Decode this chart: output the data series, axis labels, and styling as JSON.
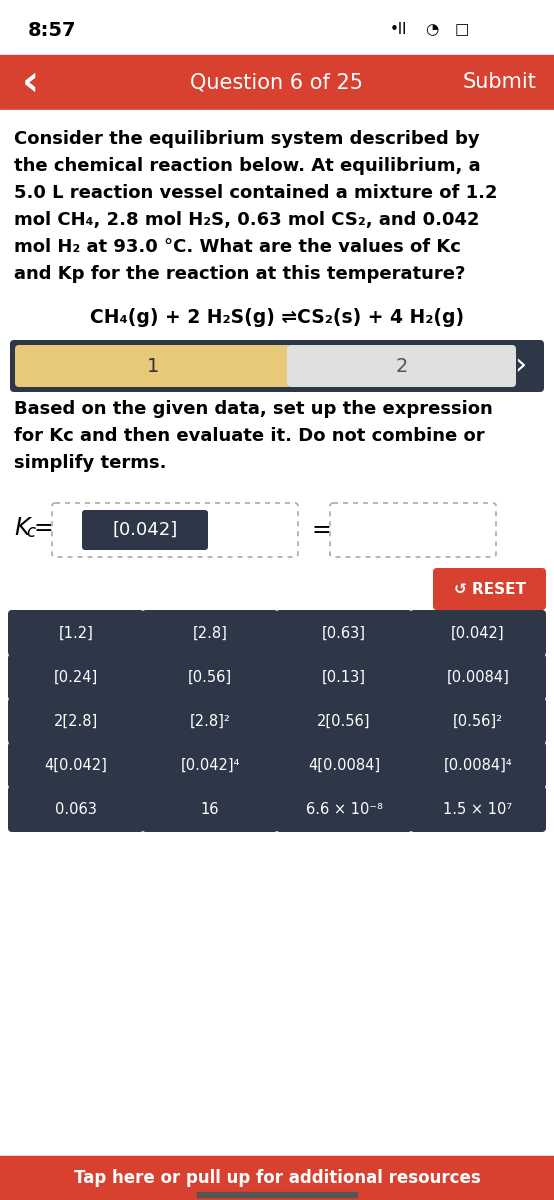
{
  "time": "8:57",
  "question_header": "Question 6 of 25",
  "submit_text": "Submit",
  "header_bg": "#D84030",
  "paragraph_lines": [
    "Consider the equilibrium system described by",
    "the chemical reaction below. At equilibrium, a",
    "5.0 L reaction vessel contained a mixture of 1.2",
    "mol CH₄, 2.8 mol H₂S, 0.63 mol CS₂, and 0.042",
    "mol H₂ at 93.0 °C. What are the values of Kc",
    "and Kp for the reaction at this temperature?"
  ],
  "reaction": "CH₄(g) + 2 H₂S(g) ⇌CS₂(s) + 4 H₂(g)",
  "step_label_1": "1",
  "step_label_2": "2",
  "step1_bg": "#E8C97A",
  "step2_bg": "#E0E0E0",
  "nav_bg": "#2D3748",
  "sub_question_lines": [
    "Based on the given data, set up the expression",
    "for Kc and then evaluate it. Do not combine or",
    "simplify terms."
  ],
  "kc_numerator": "[0.042]",
  "reset_text": "↺ RESET",
  "reset_bg": "#D84030",
  "button_bg": "#2D3748",
  "button_text_color": "#FFFFFF",
  "buttons": [
    [
      "[1.2]",
      "[2.8]",
      "[0.63]",
      "[0.042]"
    ],
    [
      "[0.24]",
      "[0.56]",
      "[0.13]",
      "[0.0084]"
    ],
    [
      "2[2.8]",
      "[2.8]²",
      "2[0.56]",
      "[0.56]²"
    ],
    [
      "4[0.042]",
      "[0.042]⁴",
      "4[0.0084]",
      "[0.0084]⁴"
    ],
    [
      "0.063",
      "16",
      "6.6 × 10⁻⁸",
      "1.5 × 10⁷"
    ]
  ],
  "footer_text": "Tap here or pull up for additional resources",
  "footer_bg": "#D84030"
}
